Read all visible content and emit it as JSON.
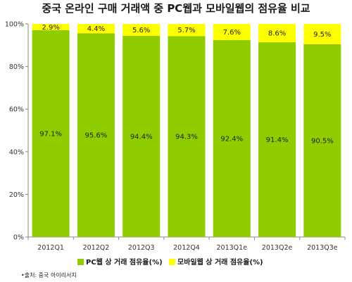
{
  "chart_data": {
    "type": "bar",
    "stacked": true,
    "title": "중국 온라인 구매 거래액 중 PC웹과 모바일웹의 점유율 비교",
    "categories": [
      "2012Q1",
      "2012Q2",
      "2012Q3",
      "2012Q4",
      "2013Q1e",
      "2013Q2e",
      "2013Q3e"
    ],
    "series": [
      {
        "name": "PC웹 상 거래 점유율(%)",
        "color": "#8fcc00",
        "values": [
          97.1,
          95.6,
          94.4,
          94.3,
          92.4,
          91.4,
          90.5
        ],
        "labels": [
          "97.1%",
          "95.6%",
          "94.4%",
          "94.3%",
          "92.4%",
          "91.4%",
          "90.5%"
        ]
      },
      {
        "name": "모바일웹 상 거래 점유율(%)",
        "color": "#ffff00",
        "values": [
          2.9,
          4.4,
          5.6,
          5.7,
          7.6,
          8.6,
          9.5
        ],
        "labels": [
          "2.9%",
          "4.4%",
          "5.6%",
          "5.7%",
          "7.6%",
          "8.6%",
          "9.5%"
        ]
      }
    ],
    "ylim": [
      0,
      100
    ],
    "yticks": [
      "0%",
      "20%",
      "40%",
      "60%",
      "80%",
      "100%"
    ],
    "ytick_values": [
      0,
      20,
      40,
      60,
      80,
      100
    ],
    "grid": false,
    "legend_position": "bottom",
    "xlabel": "",
    "ylabel": ""
  },
  "source_note": "•출처: 중국 아이리서치"
}
